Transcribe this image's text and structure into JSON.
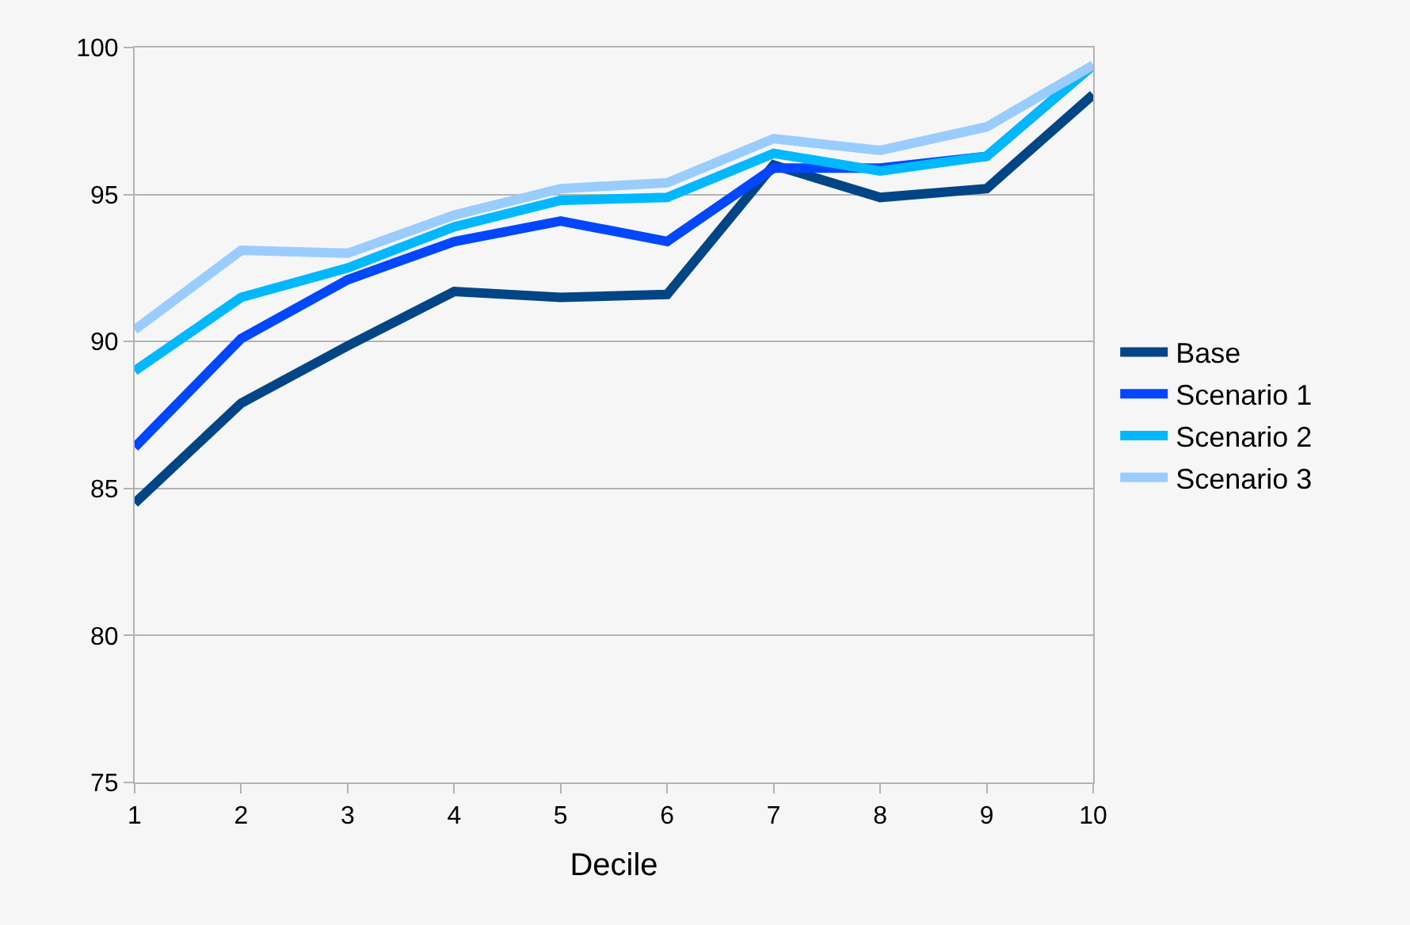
{
  "chart_data": {
    "type": "line",
    "xlabel": "Decile",
    "x": [
      1,
      2,
      3,
      4,
      5,
      6,
      7,
      8,
      9,
      10
    ],
    "series": [
      {
        "name": "Base",
        "color": "#004586",
        "values": [
          84.5,
          87.9,
          89.85,
          91.7,
          91.5,
          91.6,
          96.0,
          94.9,
          95.2,
          98.4
        ]
      },
      {
        "name": "Scenario 1",
        "color": "#0047ff",
        "values": [
          86.4,
          90.1,
          92.1,
          93.4,
          94.1,
          93.4,
          95.9,
          95.9,
          96.3,
          99.4
        ]
      },
      {
        "name": "Scenario 2",
        "color": "#00b8ff",
        "values": [
          89.0,
          91.5,
          92.5,
          93.9,
          94.8,
          94.9,
          96.4,
          95.8,
          96.3,
          99.4
        ]
      },
      {
        "name": "Scenario 3",
        "color": "#99ccff",
        "values": [
          90.4,
          93.1,
          93.0,
          94.3,
          95.2,
          95.4,
          96.9,
          96.5,
          97.3,
          99.4
        ]
      }
    ],
    "xlim": [
      1,
      10
    ],
    "xticks": [
      1,
      2,
      3,
      4,
      5,
      6,
      7,
      8,
      9,
      10
    ],
    "ylim": [
      75,
      100
    ],
    "yticks": [
      75,
      80,
      85,
      90,
      95,
      100
    ],
    "grid": "y",
    "legend": "right",
    "marker": "none",
    "line_style": "solid"
  }
}
